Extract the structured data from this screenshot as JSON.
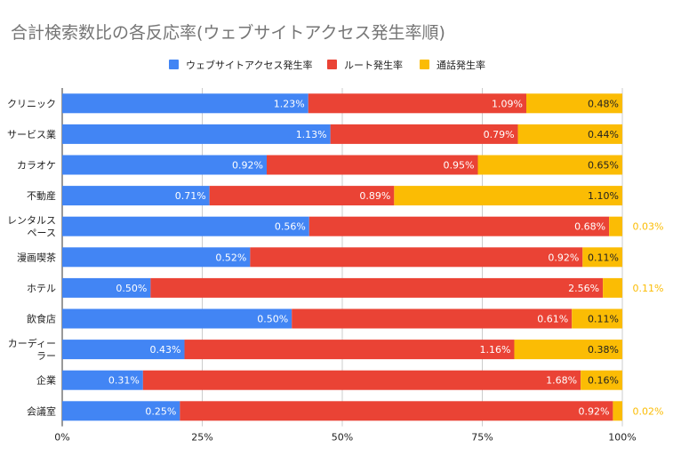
{
  "chart_data": {
    "type": "bar",
    "orientation": "horizontal",
    "stacked": "percent",
    "title": "合計検索数比の各反応率(ウェブサイトアクセス発生率順)",
    "categories": [
      "クリニック",
      "サービス業",
      "カラオケ",
      "不動産",
      "レンタルスペース",
      "漫画喫茶",
      "ホテル",
      "飲食店",
      "カーディーラー",
      "企業",
      "会議室"
    ],
    "category_labels": [
      [
        "クリニック"
      ],
      [
        "サービス業"
      ],
      [
        "カラオケ"
      ],
      [
        "不動産"
      ],
      [
        "レンタルス",
        "ペース"
      ],
      [
        "漫画喫茶"
      ],
      [
        "ホテル"
      ],
      [
        "飲食店"
      ],
      [
        "カーディー",
        "ラー"
      ],
      [
        "企業"
      ],
      [
        "会議室"
      ]
    ],
    "series": [
      {
        "name": "ウェブサイトアクセス発生率",
        "color": "#4285f4",
        "values": [
          1.23,
          1.13,
          0.92,
          0.71,
          0.56,
          0.52,
          0.5,
          0.5,
          0.43,
          0.31,
          0.25
        ],
        "labels": [
          "1.23%",
          "1.13%",
          "0.92%",
          "0.71%",
          "0.56%",
          "0.52%",
          "0.50%",
          "0.50%",
          "0.43%",
          "0.31%",
          "0.25%"
        ]
      },
      {
        "name": "ルート発生率",
        "color": "#ea4335",
        "values": [
          1.09,
          0.79,
          0.95,
          0.89,
          0.68,
          0.92,
          2.56,
          0.61,
          1.16,
          1.68,
          0.92
        ],
        "labels": [
          "1.09%",
          "0.79%",
          "0.95%",
          "0.89%",
          "0.68%",
          "0.92%",
          "2.56%",
          "0.61%",
          "1.16%",
          "1.68%",
          "0.92%"
        ]
      },
      {
        "name": "通話発生率",
        "color": "#fbbc04",
        "values": [
          0.48,
          0.44,
          0.65,
          1.1,
          0.03,
          0.11,
          0.11,
          0.11,
          0.38,
          0.16,
          0.02
        ],
        "labels": [
          "0.48%",
          "0.44%",
          "0.65%",
          "1.10%",
          "0.03%",
          "0.11%",
          "0.11%",
          "0.11%",
          "0.38%",
          "0.16%",
          "0.02%"
        ]
      }
    ],
    "x_ticks": [
      "0%",
      "25%",
      "50%",
      "75%",
      "100%"
    ],
    "xlim": [
      0,
      100
    ],
    "grid": true,
    "legend_position": "top"
  }
}
